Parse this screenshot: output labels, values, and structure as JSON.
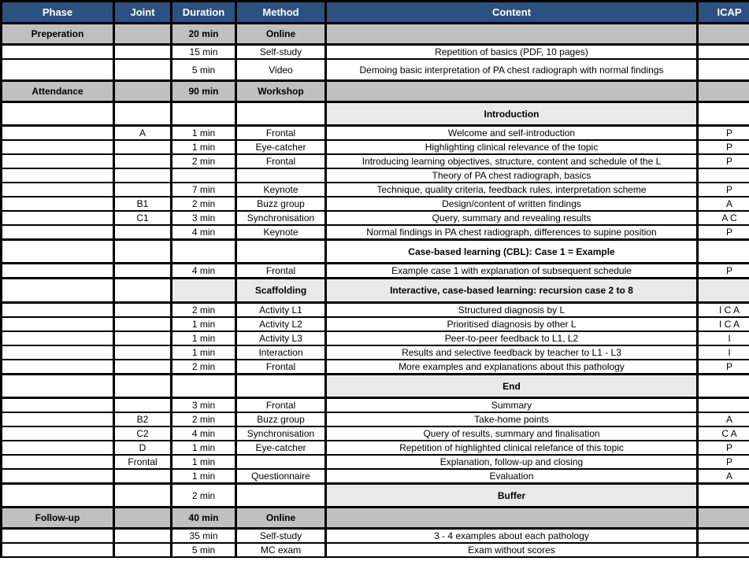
{
  "colors": {
    "header_bg": "#2B5280",
    "header_text": "#FFFFFF",
    "section_bg": "#C0C0C0",
    "subheader_bg": "#E9E9E9",
    "border": "#000000"
  },
  "table": {
    "columns": [
      {
        "key": "phase",
        "label": "Phase"
      },
      {
        "key": "joint",
        "label": "Joint"
      },
      {
        "key": "duration",
        "label": "Duration"
      },
      {
        "key": "method",
        "label": "Method"
      },
      {
        "key": "content",
        "label": "Content"
      },
      {
        "key": "icap",
        "label": "ICAP"
      }
    ],
    "rows": [
      {
        "kind": "section",
        "phase": "Preperation",
        "joint": "",
        "duration": "20 min",
        "method": "Online",
        "content": "",
        "icap": ""
      },
      {
        "kind": "normal",
        "phase": "",
        "joint": "",
        "duration": "15 min",
        "method": "Self-study",
        "content": "Repetition of basics (PDF, 10 pages)",
        "icap": ""
      },
      {
        "kind": "tall",
        "phase": "",
        "joint": "",
        "duration": "5 min",
        "method": "Video",
        "content": "Demoing basic interpretation of PA chest radiograph with normal findings",
        "icap": ""
      },
      {
        "kind": "section",
        "phase": "Attendance",
        "joint": "",
        "duration": "90 min",
        "method": "Workshop",
        "content": "",
        "icap": ""
      },
      {
        "kind": "sub",
        "phase": "",
        "joint": "",
        "duration": "",
        "method": "",
        "content": "Introduction",
        "icap": ""
      },
      {
        "kind": "normal",
        "phase": "",
        "joint": "A",
        "duration": "1 min",
        "method": "Frontal",
        "content": "Welcome and self-introduction",
        "icap": "P"
      },
      {
        "kind": "normal",
        "phase": "",
        "joint": "",
        "duration": "1 min",
        "method": "Eye-catcher",
        "content": "Highlighting clinical relevance of the topic",
        "icap": "P"
      },
      {
        "kind": "normal",
        "phase": "",
        "joint": "",
        "duration": "2 min",
        "method": "Frontal",
        "content": "Introducing learning objectives, structure, content and schedule of the L",
        "icap": "P"
      },
      {
        "kind": "normal",
        "phase": "",
        "joint": "",
        "duration": "",
        "method": "",
        "content": "Theory of PA chest radiograph, basics",
        "icap": ""
      },
      {
        "kind": "normal",
        "phase": "",
        "joint": "",
        "duration": "7 min",
        "method": "Keynote",
        "content": "Technique, quality criteria, feedback rules, interpretation scheme",
        "icap": "P"
      },
      {
        "kind": "normal",
        "phase": "",
        "joint": "B1",
        "duration": "2 min",
        "method": "Buzz group",
        "content": "Design/content of written findings",
        "icap": "A"
      },
      {
        "kind": "normal",
        "phase": "",
        "joint": "C1",
        "duration": "3 min",
        "method": "Synchronisation",
        "content": "Query, summary and revealing results",
        "icap": "A C"
      },
      {
        "kind": "normal",
        "phase": "",
        "joint": "",
        "duration": "4 min",
        "method": "Keynote",
        "content": "Normal findings in PA chest radiograph, differences to supine position",
        "icap": "P"
      },
      {
        "kind": "cbl",
        "phase": "",
        "joint": "",
        "duration": "",
        "method": "",
        "content": "Case-based learning (CBL): Case 1 = Example",
        "icap": ""
      },
      {
        "kind": "normal",
        "phase": "",
        "joint": "",
        "duration": "4 min",
        "method": "Frontal",
        "content": "Example case 1 with explanation of subsequent schedule",
        "icap": "P"
      },
      {
        "kind": "scaffold",
        "phase": "",
        "joint": "",
        "duration": "",
        "method": "Scaffolding",
        "content": "Interactive, case-based learning: recursion case 2 to 8",
        "icap": ""
      },
      {
        "kind": "normal",
        "phase": "",
        "joint": "",
        "duration": "2 min",
        "method": "Activity L1",
        "content": "Structured diagnosis by L",
        "icap": "I C A"
      },
      {
        "kind": "normal",
        "phase": "",
        "joint": "",
        "duration": "1 min",
        "method": "Activity L2",
        "content": "Prioritised diagnosis by other L",
        "icap": "I C A"
      },
      {
        "kind": "normal",
        "phase": "",
        "joint": "",
        "duration": "1 min",
        "method": "Activity L3",
        "content": "Peer-to-peer feedback to L1, L2",
        "icap": "I"
      },
      {
        "kind": "normal",
        "phase": "",
        "joint": "",
        "duration": "1 min",
        "method": "Interaction",
        "content": "Results and selective feedback by teacher to L1 - L3",
        "icap": "I"
      },
      {
        "kind": "normal",
        "phase": "",
        "joint": "",
        "duration": "2 min",
        "method": "Frontal",
        "content": "More examples and explanations about this pathology",
        "icap": "P"
      },
      {
        "kind": "sub",
        "phase": "",
        "joint": "",
        "duration": "",
        "method": "",
        "content": "End",
        "icap": ""
      },
      {
        "kind": "normal",
        "phase": "",
        "joint": "",
        "duration": "3 min",
        "method": "Frontal",
        "content": "Summary",
        "icap": ""
      },
      {
        "kind": "normal",
        "phase": "",
        "joint": "B2",
        "duration": "2 min",
        "method": "Buzz group",
        "content": "Take-home points",
        "icap": "A"
      },
      {
        "kind": "normal",
        "phase": "",
        "joint": "C2",
        "duration": "4 min",
        "method": "Synchronisation",
        "content": "Query of results, summary and finalisation",
        "icap": "C A"
      },
      {
        "kind": "normal",
        "phase": "",
        "joint": "D",
        "duration": "1 min",
        "method": "Eye-catcher",
        "content": "Repetition of highlighted clinical relefance of this topic",
        "icap": "P"
      },
      {
        "kind": "normal",
        "phase": "",
        "joint": "Frontal",
        "duration": "1 min",
        "method": "",
        "content": "Explanation, follow-up and closing",
        "icap": "P"
      },
      {
        "kind": "normal",
        "phase": "",
        "joint": "",
        "duration": "1 min",
        "method": "Questionnaire",
        "content": "Evaluation",
        "icap": "A"
      },
      {
        "kind": "sub",
        "phase": "",
        "joint": "",
        "duration": "2 min",
        "method": "",
        "content": "Buffer",
        "icap": ""
      },
      {
        "kind": "section",
        "phase": "Follow-up",
        "joint": "",
        "duration": "40 min",
        "method": "Online",
        "content": "",
        "icap": ""
      },
      {
        "kind": "normal",
        "phase": "",
        "joint": "",
        "duration": "35 min",
        "method": "Self-study",
        "content": "3 - 4 examples about each pathology",
        "icap": ""
      },
      {
        "kind": "normal",
        "phase": "",
        "joint": "",
        "duration": "5 min",
        "method": "MC exam",
        "content": "Exam without scores",
        "icap": ""
      }
    ]
  }
}
